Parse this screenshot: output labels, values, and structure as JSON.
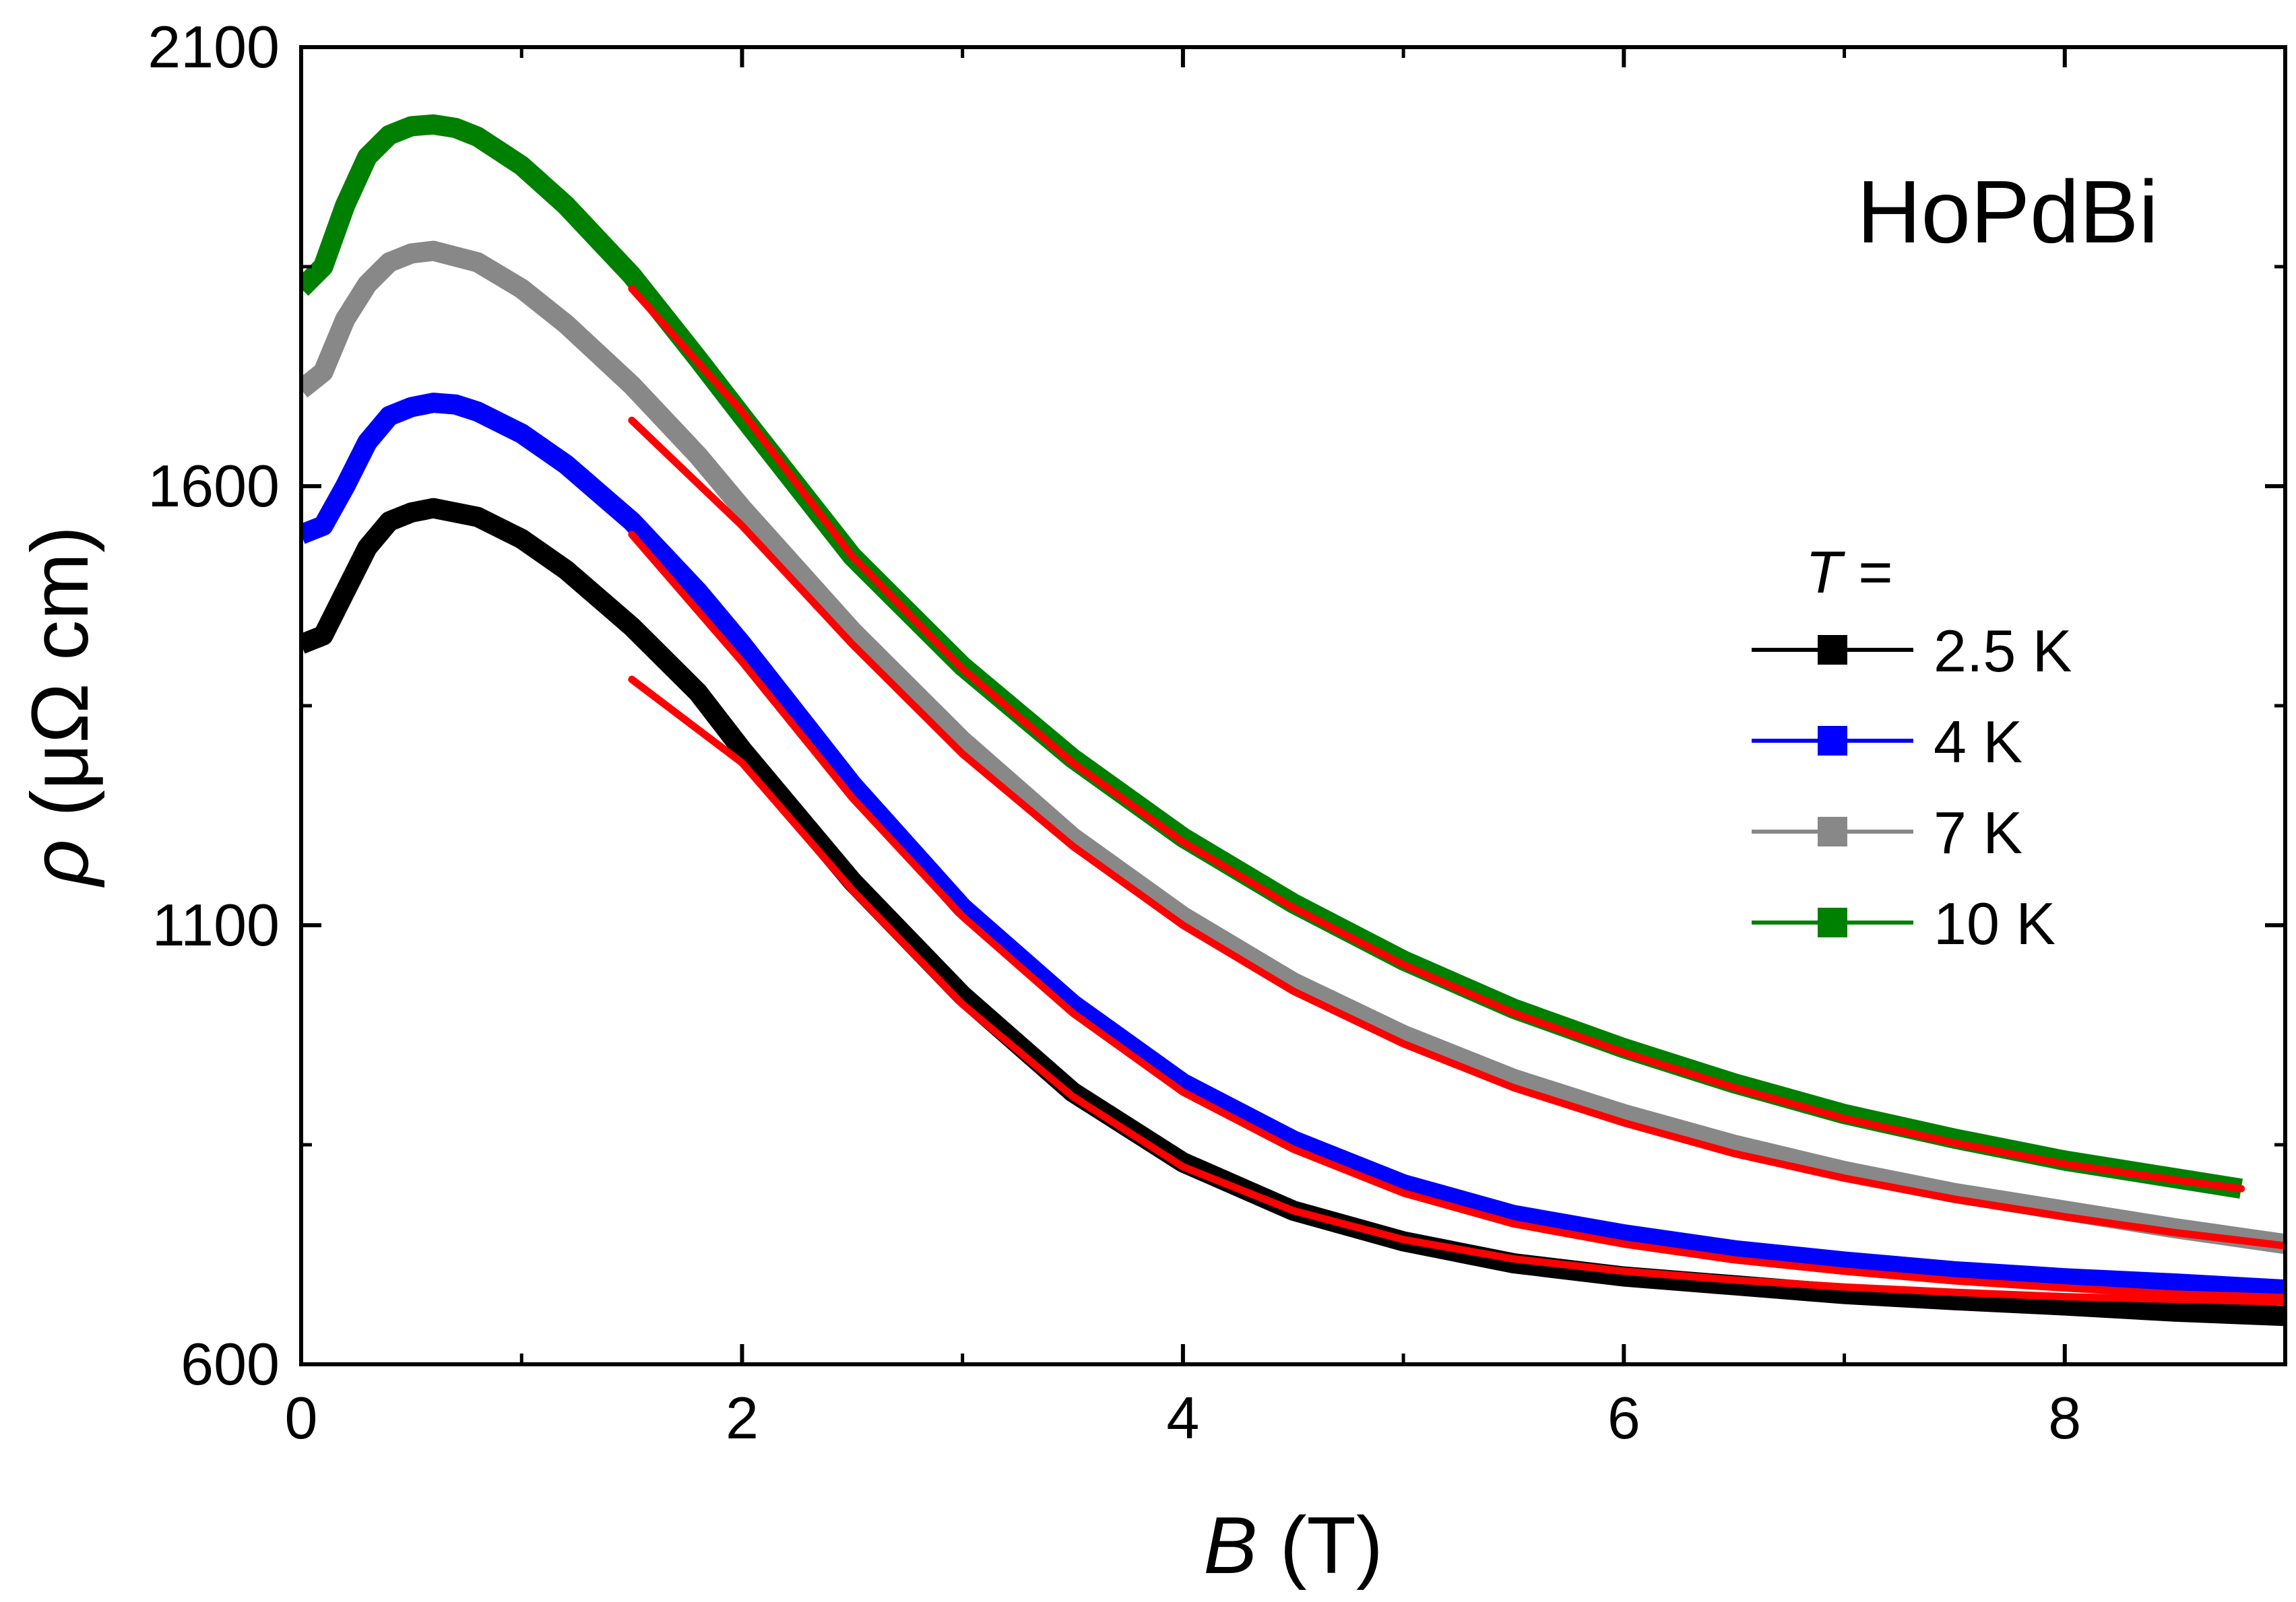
{
  "chart_data": {
    "type": "line",
    "title": "",
    "annotation": "HoPdBi",
    "xlabel": {
      "symbol": "B",
      "unit": " (T)"
    },
    "ylabel": {
      "symbol": "ρ",
      "unit": " (μΩ cm)"
    },
    "xlim": [
      0,
      9
    ],
    "ylim": [
      600,
      2100
    ],
    "xticks": [
      0,
      2,
      4,
      6,
      8
    ],
    "yticks": [
      600,
      1100,
      1600,
      2100
    ],
    "x_tick_labels": [
      "0",
      "2",
      "4",
      "6",
      "8"
    ],
    "y_tick_labels": [
      "600",
      "1100",
      "1600",
      "2100"
    ],
    "legend": {
      "title_symbol": "T",
      "title_suffix": " =",
      "placement": "right"
    },
    "series": [
      {
        "name": "2.5 K",
        "color": "#000000",
        "x": [
          0,
          0.1,
          0.2,
          0.3,
          0.4,
          0.5,
          0.6,
          0.8,
          1.0,
          1.2,
          1.5,
          1.8,
          2.0,
          2.5,
          3.0,
          3.5,
          4.0,
          4.5,
          5.0,
          5.5,
          6.0,
          6.5,
          7.0,
          7.5,
          8.0,
          8.5,
          9.0
        ],
        "y": [
          1420,
          1430,
          1480,
          1530,
          1560,
          1570,
          1575,
          1565,
          1540,
          1505,
          1440,
          1365,
          1300,
          1150,
          1020,
          910,
          830,
          775,
          740,
          715,
          700,
          690,
          680,
          673,
          667,
          660,
          655
        ]
      },
      {
        "name": "4 K",
        "color": "#0000ff",
        "x": [
          0,
          0.1,
          0.2,
          0.3,
          0.4,
          0.5,
          0.6,
          0.7,
          0.8,
          1.0,
          1.2,
          1.5,
          1.8,
          2.0,
          2.5,
          3.0,
          3.5,
          4.0,
          4.5,
          5.0,
          5.5,
          6.0,
          6.5,
          7.0,
          7.5,
          8.0,
          8.5,
          9.0
        ],
        "y": [
          1545,
          1555,
          1600,
          1650,
          1680,
          1690,
          1695,
          1693,
          1685,
          1660,
          1625,
          1560,
          1480,
          1420,
          1260,
          1120,
          1010,
          920,
          855,
          805,
          770,
          748,
          730,
          717,
          706,
          698,
          692,
          685
        ]
      },
      {
        "name": "7 K",
        "color": "#888888",
        "x": [
          0,
          0.1,
          0.2,
          0.3,
          0.4,
          0.5,
          0.6,
          0.8,
          1.0,
          1.2,
          1.5,
          1.8,
          2.0,
          2.5,
          3.0,
          3.5,
          4.0,
          4.5,
          5.0,
          5.5,
          6.0,
          6.5,
          7.0,
          7.5,
          8.0,
          8.5,
          9.0
        ],
        "y": [
          1710,
          1730,
          1790,
          1830,
          1855,
          1865,
          1868,
          1855,
          1825,
          1785,
          1715,
          1635,
          1575,
          1435,
          1310,
          1200,
          1110,
          1035,
          975,
          925,
          885,
          850,
          820,
          795,
          775,
          755,
          737
        ]
      },
      {
        "name": "10 K",
        "color": "#008000",
        "x": [
          0,
          0.1,
          0.2,
          0.3,
          0.4,
          0.5,
          0.6,
          0.7,
          0.8,
          1.0,
          1.2,
          1.5,
          1.8,
          2.0,
          2.5,
          3.0,
          3.5,
          4.0,
          4.5,
          5.0,
          5.5,
          6.0,
          6.5,
          7.0,
          7.5,
          8.0,
          8.5,
          8.8
        ],
        "y": [
          1825,
          1850,
          1920,
          1975,
          2000,
          2010,
          2012,
          2008,
          1998,
          1965,
          1920,
          1840,
          1745,
          1680,
          1520,
          1395,
          1290,
          1200,
          1125,
          1060,
          1005,
          960,
          920,
          885,
          857,
          832,
          812,
          800
        ]
      }
    ],
    "fits": [
      {
        "name": "fit 2.5 K",
        "color": "#ff0000",
        "x": [
          1.5,
          2.0,
          2.5,
          3.0,
          3.5,
          4.0,
          4.5,
          5.0,
          5.5,
          6.0,
          6.5,
          7.0,
          7.5,
          8.0,
          8.5,
          9.0
        ],
        "y": [
          1380,
          1285,
          1140,
          1010,
          905,
          825,
          775,
          742,
          720,
          706,
          696,
          688,
          682,
          677,
          674,
          671
        ]
      },
      {
        "name": "fit 4 K",
        "color": "#ff0000",
        "x": [
          1.5,
          2.0,
          2.5,
          3.0,
          3.5,
          4.0,
          4.5,
          5.0,
          5.5,
          6.0,
          6.5,
          7.0,
          7.5,
          8.0,
          8.5,
          9.0
        ],
        "y": [
          1545,
          1400,
          1245,
          1110,
          1000,
          910,
          845,
          795,
          760,
          737,
          719,
          706,
          695,
          687,
          680,
          676
        ]
      },
      {
        "name": "fit 7 K",
        "color": "#ff0000",
        "x": [
          1.5,
          2.0,
          2.5,
          3.0,
          3.5,
          4.0,
          4.5,
          5.0,
          5.5,
          6.0,
          6.5,
          7.0,
          7.5,
          8.0,
          8.5,
          9.0
        ],
        "y": [
          1675,
          1555,
          1420,
          1295,
          1190,
          1100,
          1025,
          965,
          915,
          875,
          840,
          812,
          788,
          768,
          750,
          735
        ]
      },
      {
        "name": "fit 10 K",
        "color": "#ff0000",
        "x": [
          1.5,
          2.0,
          2.5,
          3.0,
          3.5,
          4.0,
          4.5,
          5.0,
          5.5,
          6.0,
          6.5,
          7.0,
          7.5,
          8.0,
          8.5,
          8.8
        ],
        "y": [
          1825,
          1685,
          1520,
          1392,
          1285,
          1195,
          1120,
          1055,
          1000,
          955,
          915,
          880,
          852,
          828,
          810,
          800
        ]
      }
    ]
  }
}
